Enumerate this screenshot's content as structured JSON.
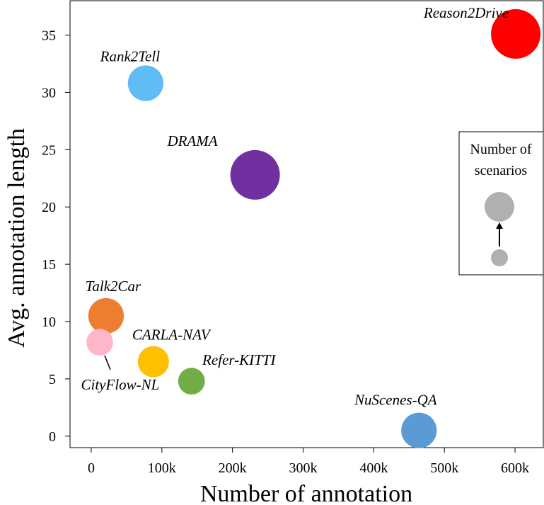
{
  "chart_data": {
    "type": "scatter",
    "xlabel": "Number of annotation",
    "ylabel": "Avg. annotation length",
    "xlim": [
      -30000,
      640000
    ],
    "ylim": [
      -1.0,
      38.0
    ],
    "x_ticks": [
      0,
      100000,
      200000,
      300000,
      400000,
      500000,
      600000
    ],
    "x_tick_labels": [
      "0",
      "100k",
      "200k",
      "300k",
      "400k",
      "500k",
      "600k"
    ],
    "y_ticks": [
      0,
      5,
      10,
      15,
      20,
      25,
      30,
      35
    ],
    "y_tick_labels": [
      "0",
      "5",
      "10",
      "15",
      "20",
      "25",
      "30",
      "35"
    ],
    "grid": false,
    "points": [
      {
        "label": "Reason2Drive",
        "x": 601000,
        "y": 35.1,
        "size": 1.0,
        "color": "#ff0000"
      },
      {
        "label": "Rank2Tell",
        "x": 77000,
        "y": 30.8,
        "size": 0.62,
        "color": "#5fbcf5"
      },
      {
        "label": "DRAMA",
        "x": 232000,
        "y": 22.8,
        "size": 1.0,
        "color": "#7030a0"
      },
      {
        "label": "Talk2Car",
        "x": 21000,
        "y": 10.5,
        "size": 0.62,
        "color": "#ed7d31"
      },
      {
        "label": "CityFlow-NL",
        "x": 12000,
        "y": 8.2,
        "size": 0.38,
        "color": "#ffb6c8"
      },
      {
        "label": "CARLA-NAV",
        "x": 88000,
        "y": 6.5,
        "size": 0.5,
        "color": "#ffc000"
      },
      {
        "label": "Refer-KITTI",
        "x": 142000,
        "y": 4.8,
        "size": 0.38,
        "color": "#70ad47"
      },
      {
        "label": "NuScenes-QA",
        "x": 464000,
        "y": 0.5,
        "size": 0.62,
        "color": "#5b9bd5"
      }
    ],
    "legend": {
      "title_line1": "Number of",
      "title_line2": "scenarios",
      "placement": "right",
      "marker_color": "#b0b0b0"
    }
  }
}
